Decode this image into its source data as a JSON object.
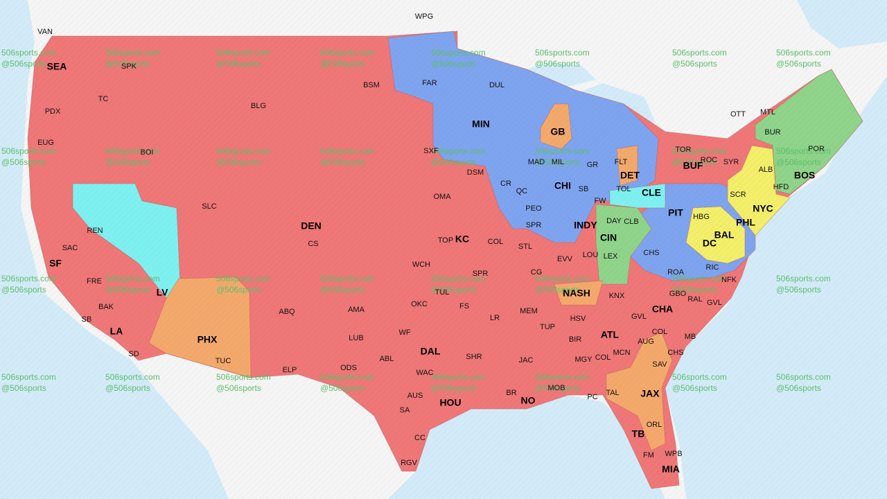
{
  "cities": [
    "VAN",
    "WPG",
    "OTT",
    "MTL",
    "TOR",
    "SPK",
    "TC",
    "PDX",
    "EUG",
    "BOI",
    "BLG",
    "BSM",
    "FAR",
    "DUL",
    "SXF",
    "DSM",
    "OMA",
    "CR",
    "QC",
    "MAD",
    "MIL",
    "GR",
    "FLT",
    "SB",
    "TOL",
    "FW",
    "PEO",
    "SPR",
    "SLC",
    "REN",
    "SAC",
    "CS",
    "TOP",
    "COL",
    "STL",
    "DAY",
    "CLB",
    "HBG",
    "SCR",
    "ALB",
    "HFD",
    "ROC",
    "SYR",
    "BUR",
    "POR",
    "FRE",
    "BAK",
    "SB",
    "SD",
    "TUC",
    "ABQ",
    "ELP",
    "AMA",
    "LUB",
    "WCH",
    "TUL",
    "OKC",
    "FS",
    "SPR",
    "WF",
    "LR",
    "EVV",
    "LOU",
    "LEX",
    "CHS",
    "CG",
    "MEM",
    "TUP",
    "HSV",
    "KNX",
    "GBO",
    "RAL",
    "GVL",
    "ROA",
    "RIC",
    "NFK",
    "GVL",
    "COL",
    "MB",
    "CHS",
    "AUG",
    "SAV",
    "BIR",
    "MGY",
    "COL",
    "MCN",
    "TAL",
    "JAC",
    "MOB",
    "PC",
    "BR",
    "ODS",
    "ABL",
    "WAC",
    "AUS",
    "SA",
    "CC",
    "RGV",
    "SHR",
    "ORL",
    "FM",
    "WPB"
  ],
  "markets": [
    "SEA",
    "MIN",
    "GB",
    "DET",
    "BUF",
    "CLE",
    "CHI",
    "DEN",
    "KC",
    "INDY",
    "PIT",
    "NYC",
    "BOS",
    "PHL",
    "BAL",
    "DC",
    "CIN",
    "SF",
    "LV",
    "NASH",
    "CHA",
    "PHX",
    "LA",
    "ATL",
    "DAL",
    "JAX",
    "NO",
    "HOU",
    "TB",
    "MIA"
  ],
  "watermark": {
    "site": "506sports.com",
    "handle": "@506sports"
  }
}
